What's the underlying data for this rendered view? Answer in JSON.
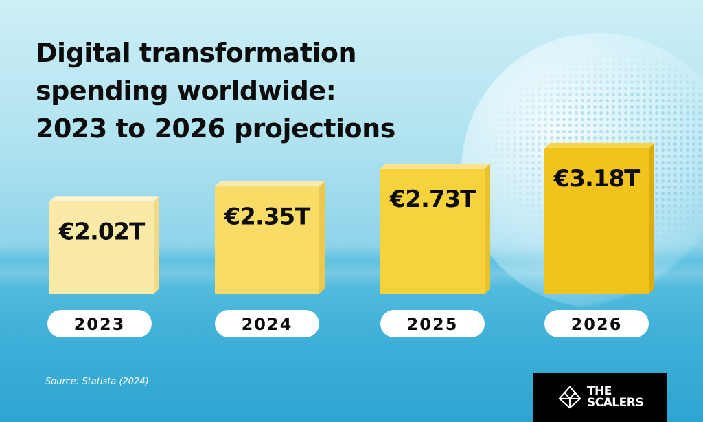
{
  "title_lines": [
    "Digital transformation",
    "spending worldwide:",
    "2023 to 2026 projections"
  ],
  "source": "Source: Statista (2024)",
  "logo": {
    "line1": "THE",
    "line2": "SCALERS"
  },
  "colors": {
    "bar_front": [
      "#fbe9a6",
      "#f9dc66",
      "#f6d23c",
      "#f2c31d"
    ],
    "bar_top": [
      "#fdf3cc",
      "#fcebb0",
      "#fbe38c",
      "#f8d64b"
    ],
    "bar_side": [
      "#f1d98a",
      "#ecc94c",
      "#e8c22d",
      "#dcab0e"
    ],
    "pill": "#ffffff",
    "text": "#0c0c0c"
  },
  "chart_data": {
    "type": "bar",
    "title": "Digital transformation spending worldwide: 2023 to 2026 projections",
    "categories": [
      "2023",
      "2024",
      "2025",
      "2026"
    ],
    "values": [
      2.02,
      2.35,
      2.73,
      3.18
    ],
    "value_labels": [
      "€2.02T",
      "€2.35T",
      "€2.73T",
      "€3.18T"
    ],
    "unit": "€ trillion",
    "xlabel": "",
    "ylabel": "",
    "ylim": [
      0,
      3.18
    ],
    "grid": false,
    "legend": "none"
  }
}
